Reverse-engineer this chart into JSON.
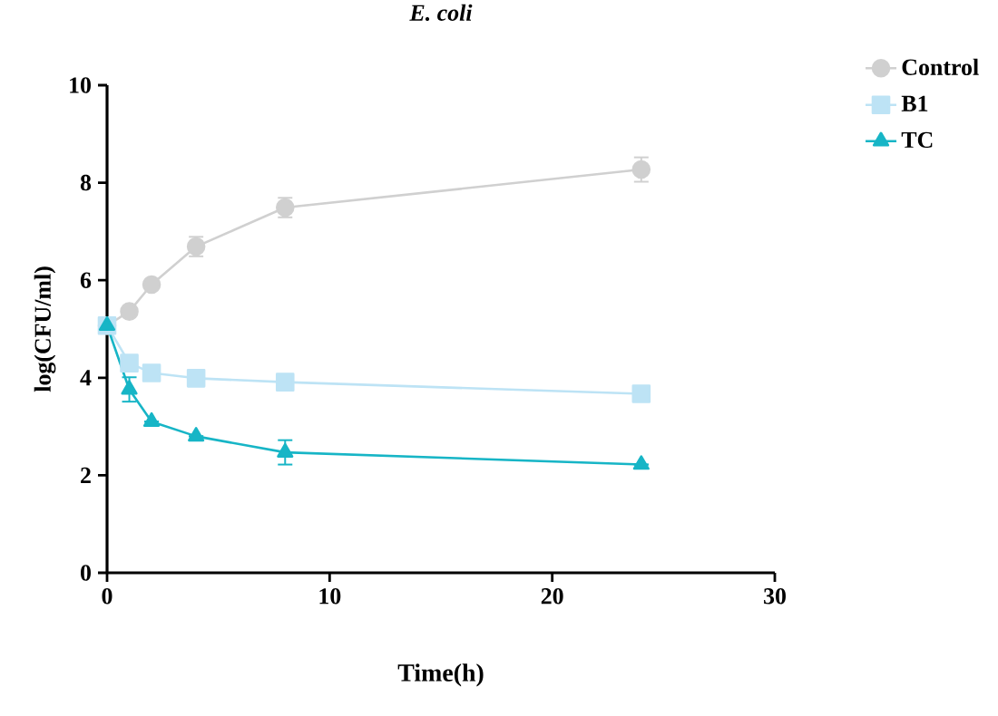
{
  "chart_data": {
    "type": "line",
    "title": "E. coli",
    "xlabel": "Time(h)",
    "ylabel": "log(CFU/ml)",
    "x": [
      0,
      1,
      2,
      4,
      8,
      24
    ],
    "series": [
      {
        "name": "Control",
        "color": "#d0d0d0",
        "marker": "circle",
        "values": [
          5.07,
          5.36,
          5.91,
          6.69,
          7.49,
          8.27
        ],
        "errors": [
          null,
          null,
          null,
          0.2,
          0.2,
          0.25
        ]
      },
      {
        "name": "B1",
        "color": "#bde3f5",
        "marker": "square",
        "values": [
          5.07,
          4.3,
          4.1,
          3.99,
          3.91,
          3.67
        ],
        "errors": [
          null,
          null,
          null,
          null,
          null,
          0.15
        ]
      },
      {
        "name": "TC",
        "color": "#17b5c6",
        "marker": "triangle",
        "values": [
          5.07,
          3.76,
          3.1,
          2.8,
          2.47,
          2.22
        ],
        "errors": [
          null,
          0.25,
          null,
          null,
          0.25,
          null
        ]
      }
    ],
    "xlim": [
      0,
      30
    ],
    "xticks": [
      0,
      10,
      20,
      30
    ],
    "ylim": [
      0,
      10
    ],
    "yticks": [
      0,
      2,
      4,
      6,
      8,
      10
    ],
    "grid": false,
    "legend": "top right",
    "line_style": "solid"
  }
}
